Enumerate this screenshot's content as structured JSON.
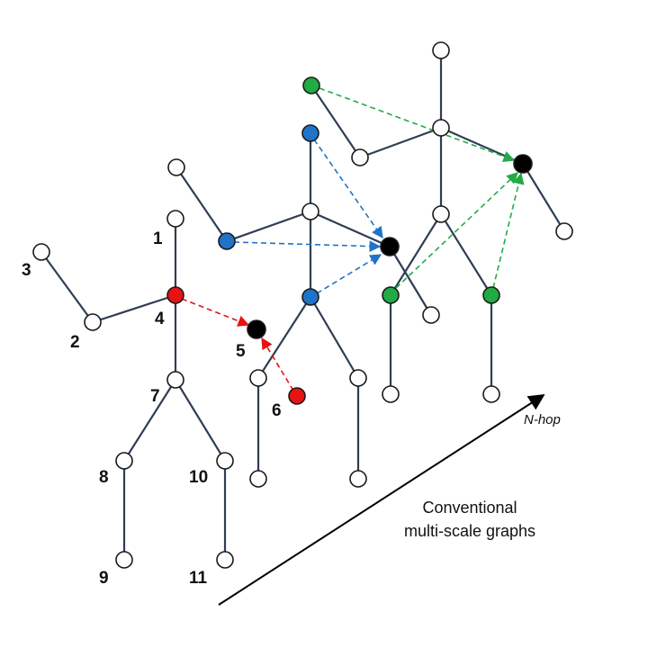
{
  "colors": {
    "white": "#ffffff",
    "red": "#e81212",
    "blue": "#1f74c8",
    "green": "#22aa44",
    "black": "#000000"
  },
  "node_labels": [
    "1",
    "2",
    "3",
    "4",
    "5",
    "6",
    "7",
    "8",
    "9",
    "10",
    "11"
  ],
  "axis_label": "N-hop",
  "caption": [
    "Conventional",
    "multi-scale graphs"
  ]
}
